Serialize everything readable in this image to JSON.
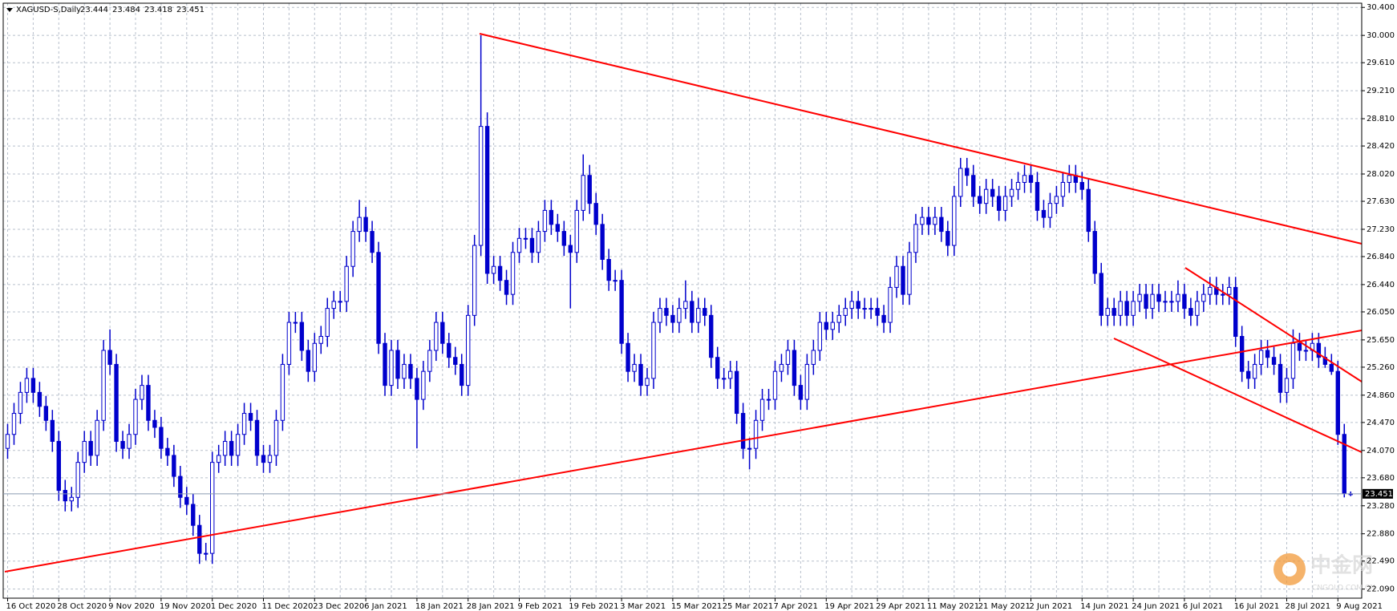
{
  "chart_data": {
    "type": "candlestick",
    "title": "XAGUSD-S,Daily",
    "color": "#0000cc",
    "grid": true,
    "watermark": [
      "中金网",
      "CNGOLD.COM.CN"
    ],
    "ylim": [
      21.96,
      30.46
    ],
    "yticks": [
      {
        "value": 30.4,
        "label": "30.400"
      },
      {
        "value": 30.0,
        "label": "30.000"
      },
      {
        "value": 29.61,
        "label": "29.610"
      },
      {
        "value": 29.21,
        "label": "29.210"
      },
      {
        "value": 28.81,
        "label": "28.810"
      },
      {
        "value": 28.42,
        "label": "28.420"
      },
      {
        "value": 28.02,
        "label": "28.020"
      },
      {
        "value": 27.63,
        "label": "27.630"
      },
      {
        "value": 27.23,
        "label": "27.230"
      },
      {
        "value": 26.84,
        "label": "26.840"
      },
      {
        "value": 26.44,
        "label": "26.440"
      },
      {
        "value": 26.05,
        "label": "26.050"
      },
      {
        "value": 25.65,
        "label": "25.650"
      },
      {
        "value": 25.26,
        "label": "25.260"
      },
      {
        "value": 24.86,
        "label": "24.860"
      },
      {
        "value": 24.47,
        "label": "24.470"
      },
      {
        "value": 24.07,
        "label": "24.070"
      },
      {
        "value": 23.68,
        "label": "23.680"
      },
      {
        "value": 23.28,
        "label": "23.280"
      },
      {
        "value": 22.88,
        "label": "22.880"
      },
      {
        "value": 22.49,
        "label": "22.490"
      },
      {
        "value": 22.09,
        "label": "22.090"
      }
    ],
    "categories": [
      "16 Oct 2020",
      null,
      null,
      null,
      null,
      null,
      null,
      null,
      "28 Oct 2020",
      null,
      null,
      null,
      null,
      null,
      null,
      null,
      "9 Nov 2020",
      null,
      null,
      null,
      null,
      null,
      null,
      null,
      "19 Nov 2020",
      null,
      null,
      null,
      null,
      null,
      null,
      null,
      "1 Dec 2020",
      null,
      null,
      null,
      null,
      null,
      null,
      null,
      "11 Dec 2020",
      null,
      null,
      null,
      null,
      null,
      null,
      null,
      "23 Dec 2020",
      null,
      null,
      null,
      null,
      null,
      null,
      null,
      "6 Jan 2021",
      null,
      null,
      null,
      null,
      null,
      null,
      null,
      "18 Jan 2021",
      null,
      null,
      null,
      null,
      null,
      null,
      null,
      "28 Jan 2021",
      null,
      null,
      null,
      null,
      null,
      null,
      null,
      "9 Feb 2021",
      null,
      null,
      null,
      null,
      null,
      null,
      null,
      "19 Feb 2021",
      null,
      null,
      null,
      null,
      null,
      null,
      null,
      "3 Mar 2021",
      null,
      null,
      null,
      null,
      null,
      null,
      null,
      "15 Mar 2021",
      null,
      null,
      null,
      null,
      null,
      null,
      null,
      "25 Mar 2021",
      null,
      null,
      null,
      null,
      null,
      null,
      null,
      "7 Apr 2021",
      null,
      null,
      null,
      null,
      null,
      null,
      null,
      "19 Apr 2021",
      null,
      null,
      null,
      null,
      null,
      null,
      null,
      "29 Apr 2021",
      null,
      null,
      null,
      null,
      null,
      null,
      null,
      "11 May 2021",
      null,
      null,
      null,
      null,
      null,
      null,
      null,
      "21 May 2021",
      null,
      null,
      null,
      null,
      null,
      null,
      null,
      "2 Jun 2021",
      null,
      null,
      null,
      null,
      null,
      null,
      null,
      "14 Jun 2021",
      null,
      null,
      null,
      null,
      null,
      null,
      null,
      "24 Jun 2021",
      null,
      null,
      null,
      null,
      null,
      null,
      null,
      "6 Jul 2021",
      null,
      null,
      null,
      null,
      null,
      null,
      null,
      "16 Jul 2021",
      null,
      null,
      null,
      null,
      null,
      null,
      null,
      "28 Jul 2021",
      null,
      null,
      null,
      null,
      null,
      null,
      null,
      "9 Aug 2021",
      null,
      null
    ],
    "open": [
      24.1,
      24.3,
      24.6,
      24.9,
      25.1,
      24.9,
      24.7,
      24.5,
      24.2,
      23.5,
      23.35,
      23.4,
      23.9,
      24.2,
      24.0,
      24.5,
      25.5,
      25.3,
      24.2,
      24.1,
      24.3,
      24.8,
      25.0,
      24.5,
      24.4,
      24.1,
      24.0,
      23.7,
      23.4,
      23.3,
      23.0,
      22.6,
      22.6,
      23.9,
      24.0,
      24.2,
      24.0,
      24.3,
      24.6,
      24.5,
      24.0,
      23.9,
      24.0,
      24.5,
      25.3,
      25.9,
      25.9,
      25.5,
      25.2,
      25.6,
      25.7,
      26.1,
      26.2,
      26.2,
      26.7,
      27.2,
      27.4,
      27.2,
      26.9,
      25.6,
      25.0,
      25.5,
      25.1,
      25.3,
      25.1,
      24.8,
      25.2,
      25.5,
      25.9,
      25.6,
      25.4,
      25.3,
      25.0,
      26.0,
      27.0,
      28.7,
      26.6,
      26.7,
      26.5,
      26.3,
      26.9,
      27.1,
      27.1,
      26.9,
      27.2,
      27.5,
      27.3,
      27.2,
      27.0,
      26.9,
      27.5,
      28.0,
      27.6,
      27.3,
      26.8,
      26.5,
      26.5,
      25.6,
      25.2,
      25.3,
      25.0,
      25.1,
      25.9,
      26.1,
      26.0,
      25.9,
      26.1,
      26.2,
      25.9,
      26.1,
      26.0,
      25.4,
      25.1,
      25.1,
      25.2,
      24.6,
      24.1,
      24.1,
      24.5,
      24.8,
      24.8,
      25.2,
      25.3,
      25.5,
      25.0,
      24.8,
      25.3,
      25.5,
      25.9,
      25.8,
      25.9,
      26.0,
      26.1,
      26.2,
      26.1,
      26.1,
      26.1,
      26.0,
      25.9,
      26.4,
      26.7,
      26.3,
      26.9,
      27.3,
      27.4,
      27.3,
      27.4,
      27.2,
      27.0,
      27.7,
      28.1,
      28.0,
      27.7,
      27.6,
      27.8,
      27.7,
      27.5,
      27.7,
      27.8,
      27.9,
      28.0,
      27.9,
      27.5,
      27.4,
      27.6,
      27.7,
      27.9,
      28.0,
      27.9,
      27.8,
      27.2,
      26.6,
      26.0,
      26.1,
      26.0,
      26.2,
      26.0,
      26.2,
      26.3,
      26.1,
      26.3,
      26.2,
      26.2,
      26.2,
      26.3,
      26.1,
      26.0,
      26.2,
      26.3,
      26.4,
      26.3,
      26.3,
      26.4,
      25.7,
      25.2,
      25.1,
      25.3,
      25.5,
      25.4,
      25.3,
      24.9,
      25.1,
      25.6,
      25.5,
      25.5,
      25.6,
      25.4,
      25.3,
      25.2,
      24.3,
      23.444
    ],
    "high": [
      24.45,
      24.75,
      25.05,
      25.25,
      25.25,
      25.05,
      24.85,
      24.65,
      24.35,
      23.65,
      23.55,
      24.05,
      24.35,
      24.35,
      24.65,
      25.65,
      25.8,
      25.45,
      24.35,
      24.45,
      24.95,
      25.15,
      25.15,
      24.65,
      24.55,
      24.25,
      24.15,
      23.85,
      23.55,
      23.45,
      23.15,
      22.75,
      24.05,
      24.15,
      24.35,
      24.35,
      24.45,
      24.75,
      24.75,
      24.65,
      24.15,
      24.15,
      24.65,
      25.45,
      26.05,
      26.05,
      26.05,
      25.65,
      25.75,
      25.85,
      26.25,
      26.35,
      26.35,
      26.85,
      27.35,
      27.65,
      27.55,
      27.35,
      27.05,
      25.75,
      25.65,
      25.65,
      25.45,
      25.45,
      25.25,
      25.35,
      25.65,
      26.05,
      26.05,
      25.75,
      25.55,
      25.45,
      26.15,
      27.15,
      30.0,
      28.9,
      26.85,
      26.85,
      26.65,
      27.05,
      27.25,
      27.25,
      27.25,
      27.35,
      27.65,
      27.65,
      27.45,
      27.35,
      27.15,
      27.65,
      28.3,
      28.15,
      27.75,
      27.45,
      26.95,
      26.65,
      26.65,
      25.75,
      25.45,
      25.45,
      25.25,
      26.05,
      26.25,
      26.25,
      26.15,
      26.25,
      26.5,
      26.35,
      26.25,
      26.25,
      26.15,
      25.55,
      25.25,
      25.35,
      25.35,
      24.75,
      24.25,
      24.65,
      24.95,
      24.95,
      25.35,
      25.45,
      25.65,
      25.65,
      25.15,
      25.45,
      25.65,
      26.05,
      26.05,
      26.05,
      26.15,
      26.25,
      26.35,
      26.35,
      26.25,
      26.25,
      26.25,
      26.15,
      26.55,
      26.85,
      26.85,
      27.05,
      27.45,
      27.55,
      27.55,
      27.55,
      27.55,
      27.35,
      27.85,
      28.25,
      28.25,
      28.15,
      27.85,
      27.95,
      27.95,
      27.85,
      27.85,
      27.95,
      28.05,
      28.15,
      28.15,
      28.05,
      27.65,
      27.75,
      27.85,
      28.05,
      28.15,
      28.15,
      28.05,
      27.95,
      27.35,
      26.75,
      26.25,
      26.25,
      26.35,
      26.35,
      26.35,
      26.45,
      26.45,
      26.45,
      26.45,
      26.35,
      26.35,
      26.5,
      26.45,
      26.25,
      26.35,
      26.45,
      26.55,
      26.55,
      26.45,
      26.55,
      26.55,
      25.85,
      25.35,
      25.45,
      25.65,
      25.65,
      25.55,
      25.45,
      25.25,
      25.8,
      25.75,
      25.65,
      25.75,
      25.75,
      25.55,
      25.45,
      25.35,
      24.45,
      23.484
    ],
    "low": [
      23.95,
      24.15,
      24.45,
      24.75,
      24.75,
      24.55,
      24.35,
      24.05,
      23.35,
      23.2,
      23.2,
      23.25,
      23.75,
      23.85,
      23.85,
      24.35,
      25.15,
      24.05,
      23.95,
      23.95,
      24.15,
      24.65,
      24.35,
      24.25,
      23.95,
      23.85,
      23.55,
      23.25,
      23.15,
      22.85,
      22.45,
      22.5,
      22.45,
      23.75,
      23.85,
      23.85,
      23.85,
      24.15,
      24.35,
      23.85,
      23.75,
      23.75,
      23.85,
      24.35,
      25.15,
      25.75,
      25.35,
      25.05,
      25.05,
      25.45,
      25.55,
      25.95,
      26.05,
      26.05,
      26.55,
      27.05,
      27.05,
      26.75,
      25.45,
      24.85,
      24.85,
      24.95,
      24.95,
      24.95,
      24.1,
      24.65,
      25.05,
      25.35,
      25.45,
      25.25,
      25.15,
      24.85,
      24.85,
      25.85,
      26.85,
      26.45,
      26.45,
      26.35,
      26.15,
      26.15,
      26.75,
      26.95,
      26.75,
      26.75,
      27.05,
      27.15,
      27.05,
      26.85,
      26.1,
      26.75,
      27.35,
      27.45,
      27.15,
      26.65,
      26.35,
      26.35,
      25.45,
      25.05,
      25.05,
      24.85,
      24.85,
      24.95,
      25.75,
      25.85,
      25.75,
      25.75,
      25.95,
      25.75,
      25.75,
      25.85,
      25.25,
      24.95,
      24.95,
      24.95,
      24.45,
      23.95,
      23.8,
      23.95,
      24.35,
      24.65,
      24.65,
      25.05,
      25.15,
      24.85,
      24.65,
      24.65,
      25.15,
      25.35,
      25.65,
      25.65,
      25.75,
      25.85,
      25.95,
      25.95,
      25.95,
      25.95,
      25.85,
      25.75,
      25.75,
      26.25,
      26.15,
      26.15,
      26.75,
      27.15,
      27.15,
      27.15,
      27.05,
      26.85,
      26.85,
      27.55,
      27.85,
      27.55,
      27.45,
      27.45,
      27.55,
      27.35,
      27.35,
      27.55,
      27.65,
      27.75,
      27.75,
      27.35,
      27.25,
      27.25,
      27.45,
      27.55,
      27.75,
      27.75,
      27.65,
      27.05,
      26.45,
      25.85,
      25.85,
      25.85,
      25.85,
      25.85,
      25.85,
      26.05,
      25.95,
      25.95,
      26.05,
      26.05,
      26.05,
      26.05,
      25.95,
      25.85,
      25.85,
      26.05,
      26.15,
      26.15,
      26.15,
      26.15,
      25.55,
      25.05,
      24.95,
      24.95,
      25.15,
      25.25,
      25.15,
      24.75,
      24.75,
      24.95,
      25.35,
      25.35,
      25.35,
      25.25,
      25.25,
      25.15,
      24.15,
      23.4,
      23.418
    ],
    "close": [
      24.3,
      24.6,
      24.9,
      25.1,
      24.9,
      24.7,
      24.5,
      24.2,
      23.5,
      23.35,
      23.4,
      23.9,
      24.2,
      24.0,
      24.5,
      25.5,
      25.3,
      24.2,
      24.1,
      24.3,
      24.8,
      25.0,
      24.5,
      24.4,
      24.1,
      24.0,
      23.7,
      23.4,
      23.3,
      23.0,
      22.6,
      22.6,
      23.9,
      24.0,
      24.2,
      24.0,
      24.3,
      24.6,
      24.5,
      24.0,
      23.9,
      24.0,
      24.5,
      25.3,
      25.9,
      25.9,
      25.5,
      25.2,
      25.6,
      25.7,
      26.1,
      26.2,
      26.2,
      26.7,
      27.2,
      27.4,
      27.2,
      26.9,
      25.6,
      25.0,
      25.5,
      25.1,
      25.3,
      25.1,
      24.8,
      25.2,
      25.5,
      25.9,
      25.6,
      25.4,
      25.3,
      25.0,
      26.0,
      27.0,
      28.7,
      26.6,
      26.7,
      26.5,
      26.3,
      26.9,
      27.1,
      27.1,
      26.9,
      27.2,
      27.5,
      27.3,
      27.2,
      27.0,
      26.9,
      27.5,
      28.0,
      27.6,
      27.3,
      26.8,
      26.5,
      26.5,
      25.6,
      25.2,
      25.3,
      25.0,
      25.1,
      25.9,
      26.1,
      26.0,
      25.9,
      26.1,
      26.2,
      25.9,
      26.1,
      26.0,
      25.4,
      25.1,
      25.1,
      25.2,
      24.6,
      24.1,
      24.1,
      24.5,
      24.8,
      24.8,
      25.2,
      25.3,
      25.5,
      25.0,
      24.8,
      25.3,
      25.5,
      25.9,
      25.8,
      25.9,
      26.0,
      26.1,
      26.2,
      26.1,
      26.1,
      26.1,
      26.0,
      25.9,
      26.4,
      26.7,
      26.3,
      26.9,
      27.3,
      27.4,
      27.3,
      27.4,
      27.2,
      27.0,
      27.7,
      28.1,
      28.0,
      27.7,
      27.6,
      27.8,
      27.7,
      27.5,
      27.7,
      27.8,
      27.9,
      28.0,
      27.9,
      27.5,
      27.4,
      27.6,
      27.7,
      27.9,
      28.0,
      27.9,
      27.8,
      27.2,
      26.6,
      26.0,
      26.1,
      26.0,
      26.2,
      26.0,
      26.2,
      26.3,
      26.1,
      26.3,
      26.2,
      26.2,
      26.2,
      26.3,
      26.1,
      26.0,
      26.2,
      26.3,
      26.4,
      26.3,
      26.3,
      26.4,
      25.7,
      25.2,
      25.1,
      25.3,
      25.5,
      25.4,
      25.3,
      24.9,
      25.1,
      25.6,
      25.5,
      25.5,
      25.6,
      25.4,
      25.3,
      25.2,
      24.3,
      23.46,
      23.451
    ]
  }
}
